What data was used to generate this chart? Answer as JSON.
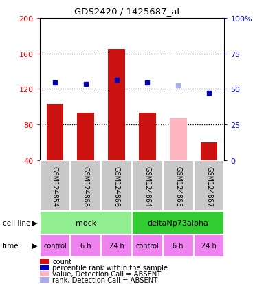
{
  "title": "GDS2420 / 1425687_at",
  "samples": [
    "GSM124854",
    "GSM124868",
    "GSM124866",
    "GSM124864",
    "GSM124865",
    "GSM124867"
  ],
  "count_values": [
    103,
    93,
    165,
    93,
    87,
    60
  ],
  "count_absent": [
    false,
    false,
    false,
    false,
    true,
    false
  ],
  "rank_values": [
    127,
    126,
    130,
    127,
    124,
    116
  ],
  "rank_absent": [
    false,
    false,
    false,
    false,
    true,
    false
  ],
  "ylim_left": [
    40,
    200
  ],
  "ylim_right": [
    0,
    100
  ],
  "yticks_left": [
    40,
    80,
    120,
    160,
    200
  ],
  "yticks_right": [
    0,
    25,
    50,
    75,
    100
  ],
  "cell_line_groups": [
    {
      "label": "mock",
      "start": 0,
      "end": 3,
      "color": "#90ee90"
    },
    {
      "label": "deltaNp73alpha",
      "start": 3,
      "end": 6,
      "color": "#33cc33"
    }
  ],
  "time_labels": [
    "control",
    "6 h",
    "24 h",
    "control",
    "6 h",
    "24 h"
  ],
  "time_color": "#ee82ee",
  "sample_box_color": "#c8c8c8",
  "bar_color_present": "#cc1111",
  "bar_color_absent": "#ffb6c1",
  "rank_color_present": "#0000bb",
  "rank_color_absent": "#aaaaee",
  "bar_width": 0.55,
  "legend_items": [
    {
      "color": "#cc1111",
      "label": "count"
    },
    {
      "color": "#0000bb",
      "label": "percentile rank within the sample"
    },
    {
      "color": "#ffb6c1",
      "label": "value, Detection Call = ABSENT"
    },
    {
      "color": "#aaaaee",
      "label": "rank, Detection Call = ABSENT"
    }
  ]
}
